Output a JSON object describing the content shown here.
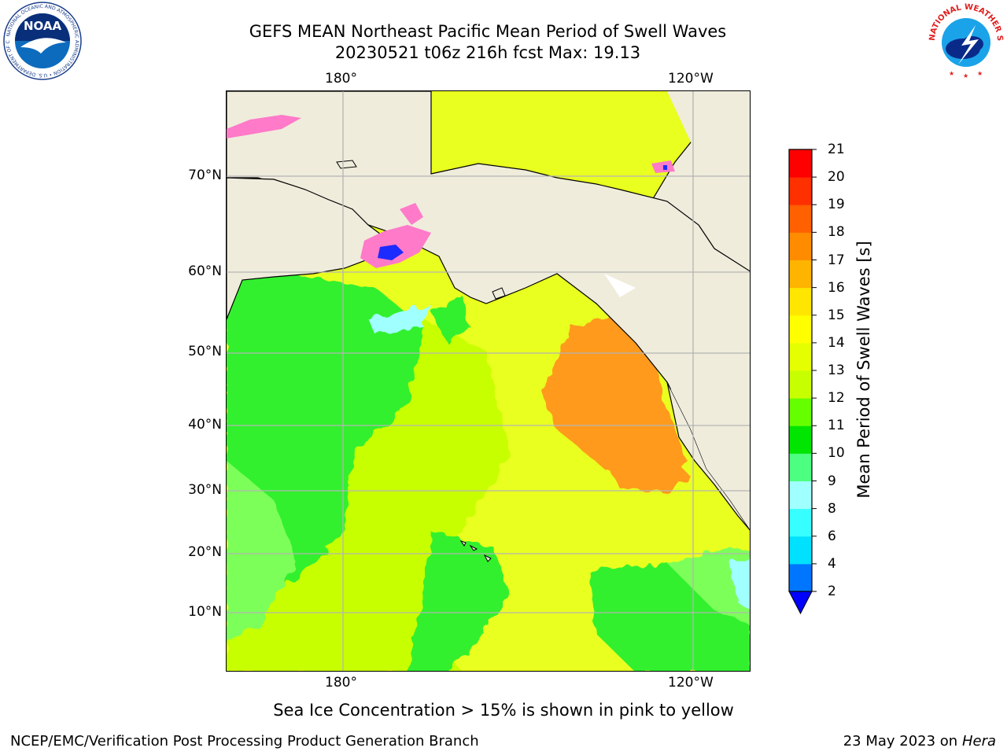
{
  "title": {
    "line1": "GEFS MEAN Northeast Pacific Mean Period of Swell Waves",
    "line2": "20230521 t06z 216h fcst   Max: 19.13"
  },
  "map": {
    "top_lon_labels": [
      "180°",
      "120°W"
    ],
    "bottom_lon_labels": [
      "180°",
      "120°W"
    ],
    "lat_labels": [
      "70°N",
      "60°N",
      "50°N",
      "40°N",
      "30°N",
      "20°N",
      "10°N"
    ]
  },
  "colorbar": {
    "label": "Mean Period of Swell Waves [s]",
    "ticks": [
      "2",
      "4",
      "6",
      "8",
      "9",
      "10",
      "11",
      "12",
      "13",
      "14",
      "15",
      "16",
      "17",
      "18",
      "19",
      "20",
      "21"
    ],
    "colors": [
      "#0000ff",
      "#0076ff",
      "#00e0ff",
      "#38ffff",
      "#a0ffff",
      "#4dff80",
      "#00e600",
      "#66ff00",
      "#c8ff00",
      "#e6ff00",
      "#ffff00",
      "#ffe600",
      "#ffb400",
      "#ff8c00",
      "#ff6000",
      "#ff3000",
      "#ff0000"
    ],
    "under_color": "#0000ff"
  },
  "colors": {
    "land": "#efecdc",
    "ocean_main": "#e9ff1f",
    "ocean_green": "#33f02e",
    "ocean_light_green": "#7dff5a",
    "warm": "#ff9a1a",
    "ice_pink": "#ff7ac8"
  },
  "note": "Sea Ice Concentration > 15% is shown in pink to yellow",
  "footer": {
    "left": "NCEP/EMC/Verification Post Processing Product Generation Branch",
    "right_date": "23 May 2023 on",
    "right_host": "Hera"
  },
  "logos": {
    "noaa_text": "NOAA",
    "noaa_ring_text": "NATIONAL OCEANIC AND ATMOSPHERIC ADMINISTRATION • U.S. DEPARTMENT OF COMMERCE",
    "nws_ring_text": "NATIONAL WEATHER SERVICE"
  }
}
